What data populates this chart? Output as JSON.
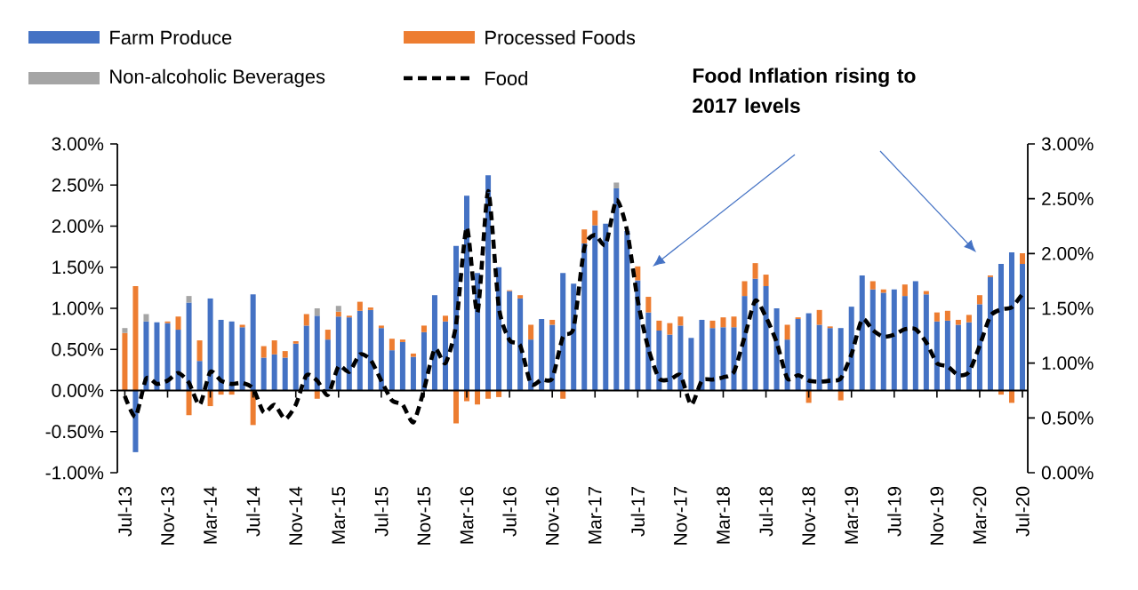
{
  "chart_data": {
    "type": "bar",
    "stacked": true,
    "legend": "top left",
    "categories": [
      "Jul-13",
      null,
      null,
      null,
      "Nov-13",
      null,
      null,
      null,
      "Mar-14",
      null,
      null,
      null,
      "Jul-14",
      null,
      null,
      null,
      "Nov-14",
      null,
      null,
      null,
      "Mar-15",
      null,
      null,
      null,
      "Jul-15",
      null,
      null,
      null,
      "Nov-15",
      null,
      null,
      null,
      "Mar-16",
      null,
      null,
      null,
      "Jul-16",
      null,
      null,
      null,
      "Nov-16",
      null,
      null,
      null,
      "Mar-17",
      null,
      null,
      null,
      "Jul-17",
      null,
      null,
      null,
      "Nov-17",
      null,
      null,
      null,
      "Mar-18",
      null,
      null,
      null,
      "Jul-18",
      null,
      null,
      null,
      "Nov-18",
      null,
      null,
      null,
      "Mar-19",
      null,
      null,
      null,
      "Jul-19",
      null,
      null,
      null,
      "Nov-19",
      null,
      null,
      null,
      "Mar-20",
      null,
      null,
      null,
      "Jul-20"
    ],
    "series": [
      {
        "name": "Farm Produce",
        "color": "#4472c4",
        "values": [
          null,
          -0.75,
          0.84,
          0.83,
          0.82,
          0.74,
          1.07,
          0.36,
          1.12,
          0.86,
          0.84,
          0.77,
          1.17,
          0.4,
          0.44,
          0.4,
          0.57,
          0.79,
          0.91,
          0.62,
          0.9,
          0.89,
          0.97,
          0.98,
          0.76,
          0.49,
          0.59,
          0.41,
          0.71,
          1.16,
          0.84,
          1.76,
          2.37,
          1.43,
          2.62,
          1.5,
          1.21,
          1.12,
          0.62,
          0.87,
          0.8,
          1.43,
          1.3,
          1.79,
          2.01,
          2.03,
          2.46,
          1.94,
          1.34,
          0.95,
          0.73,
          0.68,
          0.79,
          0.64,
          0.86,
          0.76,
          0.77,
          0.77,
          1.15,
          1.36,
          1.27,
          1.0,
          0.62,
          0.87,
          0.94,
          0.8,
          0.76,
          0.76,
          1.02,
          1.4,
          1.23,
          1.19,
          1.23,
          1.15,
          1.33,
          1.17,
          0.84,
          0.85,
          0.8,
          0.83,
          1.05,
          1.38,
          1.54,
          1.68,
          1.54
        ]
      },
      {
        "name": "Processed Foods",
        "color": "#ed7d31",
        "values": [
          0.7,
          1.27,
          0,
          0,
          0.02,
          0.16,
          -0.3,
          0.25,
          -0.19,
          -0.05,
          -0.05,
          0.03,
          -0.42,
          0.14,
          0.17,
          0.08,
          0.03,
          0.14,
          -0.1,
          0.12,
          0.06,
          0.02,
          0.11,
          0.03,
          0.03,
          0.14,
          0.03,
          0.04,
          0.08,
          0,
          0.07,
          -0.4,
          -0.13,
          -0.17,
          -0.1,
          -0.08,
          0.01,
          0.04,
          0.18,
          0,
          0.06,
          -0.1,
          0,
          0.17,
          0.18,
          0,
          0,
          null,
          0.17,
          0.19,
          0.12,
          0.14,
          0.11,
          0,
          0,
          0.09,
          0.12,
          0.13,
          0.18,
          0.19,
          0.14,
          0,
          0.18,
          0.02,
          -0.15,
          0.18,
          0.02,
          -0.12,
          0,
          0,
          0.1,
          0.04,
          0,
          0.14,
          0,
          0.04,
          0.11,
          0.12,
          0.06,
          0.09,
          0.11,
          0.02,
          -0.05,
          -0.15,
          0.13
        ]
      },
      {
        "name": "Non-alcoholic Beverages",
        "color": "#a5a5a5",
        "values": [
          0.06,
          null,
          0.09,
          0,
          0,
          0,
          0.08,
          0,
          0,
          0,
          0,
          0,
          0,
          0,
          0,
          0,
          0,
          0,
          0.09,
          0,
          0.07,
          0,
          0,
          0,
          0,
          0,
          0,
          0,
          0,
          0,
          0,
          0,
          null,
          0,
          null,
          0,
          0,
          0,
          0,
          0,
          0,
          0,
          0,
          0,
          0,
          0,
          0.07,
          0,
          0,
          0,
          0,
          0,
          0,
          0,
          0,
          0,
          0,
          0,
          0,
          0,
          0,
          0,
          0,
          0,
          0,
          0,
          0,
          0,
          0,
          0,
          0,
          0,
          0,
          0,
          0,
          0,
          0,
          0,
          0,
          0,
          0,
          0,
          0,
          0,
          0
        ]
      },
      {
        "name": "Food",
        "type": "line",
        "axis": "y2",
        "line_style": "dashed",
        "color": "#000000",
        "values": [
          0.7,
          0.51,
          0.86,
          0.81,
          0.84,
          0.91,
          0.82,
          0.62,
          0.92,
          0.84,
          0.81,
          0.82,
          0.77,
          0.55,
          0.62,
          0.49,
          0.62,
          0.89,
          0.84,
          0.71,
          0.97,
          0.92,
          1.08,
          1.03,
          0.84,
          0.66,
          0.62,
          0.46,
          0.76,
          1.13,
          1.0,
          1.35,
          2.24,
          1.46,
          2.57,
          1.51,
          1.21,
          1.16,
          0.81,
          0.85,
          0.86,
          1.24,
          1.32,
          2.05,
          2.17,
          2.08,
          2.49,
          2.21,
          1.57,
          1.13,
          0.86,
          0.85,
          0.89,
          0.62,
          0.84,
          0.85,
          0.87,
          0.92,
          1.24,
          1.57,
          1.42,
          1.19,
          0.86,
          0.89,
          0.84,
          0.83,
          0.84,
          0.86,
          1.08,
          1.4,
          1.3,
          1.24,
          1.26,
          1.31,
          1.31,
          1.19,
          1.0,
          0.97,
          0.89,
          0.92,
          1.16,
          1.43,
          1.49,
          1.51,
          1.63
        ]
      }
    ],
    "ylim": [
      -1,
      3
    ],
    "yticks": [
      {
        "value": -1,
        "label": "-1.00%"
      },
      {
        "value": -0.5,
        "label": "-0.50%"
      },
      {
        "value": 0,
        "label": "0.00%"
      },
      {
        "value": 0.5,
        "label": "0.50%"
      },
      {
        "value": 1,
        "label": "1.00%"
      },
      {
        "value": 1.5,
        "label": "1.50%"
      },
      {
        "value": 2,
        "label": "2.00%"
      },
      {
        "value": 2.5,
        "label": "2.50%"
      },
      {
        "value": 3,
        "label": "3.00%"
      }
    ],
    "y2lim": [
      0,
      3
    ],
    "y2ticks": [
      {
        "value": 0,
        "label": "0.00%"
      },
      {
        "value": 0.5,
        "label": "0.50%"
      },
      {
        "value": 1,
        "label": "1.00%"
      },
      {
        "value": 1.5,
        "label": "1.50%"
      },
      {
        "value": 2,
        "label": "2.00%"
      },
      {
        "value": 2.5,
        "label": "2.50%"
      },
      {
        "value": 3,
        "label": "3.00%"
      }
    ],
    "annotations": [
      "Food Inflation rising to 2017 levels"
    ]
  }
}
